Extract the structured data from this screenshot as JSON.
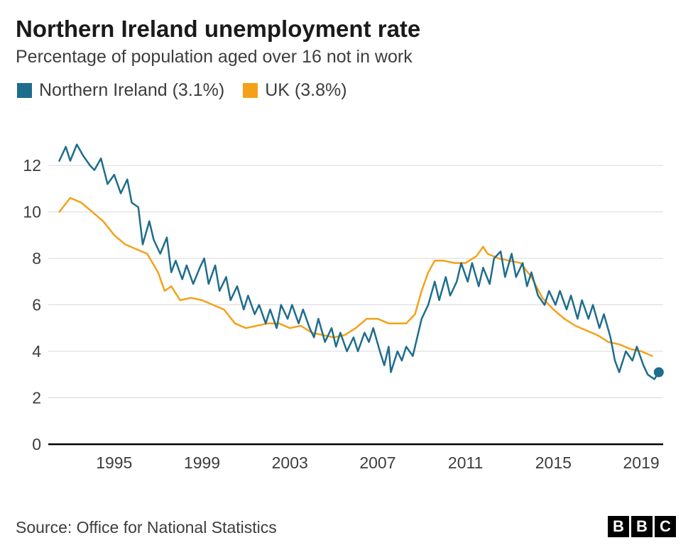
{
  "chart": {
    "type": "line",
    "title": "Northern Ireland unemployment rate",
    "subtitle": "Percentage of population aged over 16 not in work",
    "source": "Source: Office for National Statistics",
    "legend": [
      {
        "label": "Northern Ireland (3.1%)",
        "color": "#1e6d8c"
      },
      {
        "label": "UK (3.8%)",
        "color": "#f4a119"
      }
    ],
    "yaxis": {
      "min": 0,
      "max": 13.5,
      "ticks": [
        0,
        2,
        4,
        6,
        8,
        10,
        12
      ],
      "grid_color": "#d9d9d9",
      "label_fontsize": 23
    },
    "xaxis": {
      "min": 1992,
      "max": 2020,
      "ticks": [
        1995,
        1999,
        2003,
        2007,
        2011,
        2015,
        2019
      ],
      "label_fontsize": 23
    },
    "background_color": "#ffffff",
    "line_width": 2.5,
    "end_marker": {
      "series": "ni",
      "radius": 7,
      "color": "#1e6d8c"
    },
    "baseline_color": "#000000",
    "series": {
      "ni": {
        "color": "#1e6d8c",
        "points": [
          [
            1992.5,
            12.2
          ],
          [
            1992.8,
            12.8
          ],
          [
            1993.0,
            12.2
          ],
          [
            1993.3,
            12.9
          ],
          [
            1993.6,
            12.4
          ],
          [
            1993.9,
            12.0
          ],
          [
            1994.1,
            11.8
          ],
          [
            1994.4,
            12.3
          ],
          [
            1994.7,
            11.2
          ],
          [
            1995.0,
            11.6
          ],
          [
            1995.3,
            10.8
          ],
          [
            1995.6,
            11.4
          ],
          [
            1995.8,
            10.4
          ],
          [
            1996.1,
            10.2
          ],
          [
            1996.3,
            8.6
          ],
          [
            1996.6,
            9.6
          ],
          [
            1996.8,
            8.8
          ],
          [
            1997.1,
            8.2
          ],
          [
            1997.4,
            8.9
          ],
          [
            1997.6,
            7.4
          ],
          [
            1997.8,
            7.9
          ],
          [
            1998.1,
            7.1
          ],
          [
            1998.3,
            7.7
          ],
          [
            1998.6,
            6.9
          ],
          [
            1998.9,
            7.6
          ],
          [
            1999.1,
            8.0
          ],
          [
            1999.3,
            6.9
          ],
          [
            1999.6,
            7.7
          ],
          [
            1999.8,
            6.6
          ],
          [
            2000.1,
            7.2
          ],
          [
            2000.3,
            6.2
          ],
          [
            2000.6,
            6.8
          ],
          [
            2000.9,
            5.8
          ],
          [
            2001.1,
            6.4
          ],
          [
            2001.4,
            5.6
          ],
          [
            2001.6,
            6.0
          ],
          [
            2001.9,
            5.2
          ],
          [
            2002.1,
            5.8
          ],
          [
            2002.4,
            5.0
          ],
          [
            2002.6,
            6.0
          ],
          [
            2002.9,
            5.4
          ],
          [
            2003.1,
            6.0
          ],
          [
            2003.4,
            5.2
          ],
          [
            2003.6,
            5.8
          ],
          [
            2003.9,
            5.0
          ],
          [
            2004.1,
            4.6
          ],
          [
            2004.3,
            5.4
          ],
          [
            2004.6,
            4.4
          ],
          [
            2004.9,
            5.0
          ],
          [
            2005.1,
            4.2
          ],
          [
            2005.3,
            4.8
          ],
          [
            2005.6,
            4.0
          ],
          [
            2005.9,
            4.6
          ],
          [
            2006.1,
            4.0
          ],
          [
            2006.4,
            4.8
          ],
          [
            2006.6,
            4.4
          ],
          [
            2006.8,
            5.0
          ],
          [
            2007.1,
            4.0
          ],
          [
            2007.3,
            3.4
          ],
          [
            2007.5,
            4.2
          ],
          [
            2007.6,
            3.1
          ],
          [
            2007.9,
            4.0
          ],
          [
            2008.1,
            3.6
          ],
          [
            2008.3,
            4.2
          ],
          [
            2008.6,
            3.8
          ],
          [
            2008.8,
            4.6
          ],
          [
            2009.0,
            5.4
          ],
          [
            2009.3,
            6.0
          ],
          [
            2009.6,
            7.0
          ],
          [
            2009.8,
            6.2
          ],
          [
            2010.1,
            7.2
          ],
          [
            2010.3,
            6.4
          ],
          [
            2010.6,
            7.0
          ],
          [
            2010.8,
            7.8
          ],
          [
            2011.1,
            7.0
          ],
          [
            2011.3,
            7.8
          ],
          [
            2011.6,
            6.8
          ],
          [
            2011.8,
            7.6
          ],
          [
            2012.1,
            6.9
          ],
          [
            2012.3,
            8.0
          ],
          [
            2012.6,
            8.3
          ],
          [
            2012.8,
            7.2
          ],
          [
            2013.1,
            8.2
          ],
          [
            2013.3,
            7.2
          ],
          [
            2013.6,
            7.8
          ],
          [
            2013.8,
            6.8
          ],
          [
            2014.0,
            7.4
          ],
          [
            2014.3,
            6.4
          ],
          [
            2014.6,
            6.0
          ],
          [
            2014.8,
            6.6
          ],
          [
            2015.1,
            6.0
          ],
          [
            2015.3,
            6.6
          ],
          [
            2015.6,
            5.8
          ],
          [
            2015.8,
            6.4
          ],
          [
            2016.1,
            5.4
          ],
          [
            2016.3,
            6.2
          ],
          [
            2016.6,
            5.4
          ],
          [
            2016.8,
            6.0
          ],
          [
            2017.1,
            5.0
          ],
          [
            2017.3,
            5.6
          ],
          [
            2017.6,
            4.6
          ],
          [
            2017.8,
            3.6
          ],
          [
            2018.0,
            3.1
          ],
          [
            2018.3,
            4.0
          ],
          [
            2018.6,
            3.6
          ],
          [
            2018.8,
            4.2
          ],
          [
            2019.1,
            3.4
          ],
          [
            2019.3,
            3.0
          ],
          [
            2019.6,
            2.8
          ],
          [
            2019.8,
            3.1
          ]
        ]
      },
      "uk": {
        "color": "#f4a119",
        "points": [
          [
            1992.5,
            10.0
          ],
          [
            1993.0,
            10.6
          ],
          [
            1993.5,
            10.4
          ],
          [
            1994.0,
            10.0
          ],
          [
            1994.5,
            9.6
          ],
          [
            1995.0,
            9.0
          ],
          [
            1995.5,
            8.6
          ],
          [
            1996.0,
            8.4
          ],
          [
            1996.5,
            8.2
          ],
          [
            1997.0,
            7.4
          ],
          [
            1997.3,
            6.6
          ],
          [
            1997.6,
            6.8
          ],
          [
            1998.0,
            6.2
          ],
          [
            1998.5,
            6.3
          ],
          [
            1999.0,
            6.2
          ],
          [
            1999.5,
            6.0
          ],
          [
            2000.0,
            5.8
          ],
          [
            2000.5,
            5.2
          ],
          [
            2001.0,
            5.0
          ],
          [
            2001.5,
            5.1
          ],
          [
            2002.0,
            5.2
          ],
          [
            2002.5,
            5.2
          ],
          [
            2003.0,
            5.0
          ],
          [
            2003.5,
            5.1
          ],
          [
            2004.0,
            4.8
          ],
          [
            2004.5,
            4.7
          ],
          [
            2005.0,
            4.6
          ],
          [
            2005.5,
            4.7
          ],
          [
            2006.0,
            5.0
          ],
          [
            2006.5,
            5.4
          ],
          [
            2007.0,
            5.4
          ],
          [
            2007.5,
            5.2
          ],
          [
            2008.0,
            5.2
          ],
          [
            2008.3,
            5.2
          ],
          [
            2008.7,
            5.6
          ],
          [
            2009.0,
            6.6
          ],
          [
            2009.3,
            7.4
          ],
          [
            2009.6,
            7.9
          ],
          [
            2010.0,
            7.9
          ],
          [
            2010.5,
            7.8
          ],
          [
            2011.0,
            7.8
          ],
          [
            2011.5,
            8.1
          ],
          [
            2011.8,
            8.5
          ],
          [
            2012.0,
            8.2
          ],
          [
            2012.5,
            8.0
          ],
          [
            2013.0,
            7.9
          ],
          [
            2013.5,
            7.8
          ],
          [
            2014.0,
            7.2
          ],
          [
            2014.5,
            6.3
          ],
          [
            2015.0,
            5.8
          ],
          [
            2015.5,
            5.4
          ],
          [
            2016.0,
            5.1
          ],
          [
            2016.5,
            4.9
          ],
          [
            2017.0,
            4.7
          ],
          [
            2017.5,
            4.4
          ],
          [
            2018.0,
            4.3
          ],
          [
            2018.5,
            4.1
          ],
          [
            2019.0,
            4.0
          ],
          [
            2019.5,
            3.8
          ]
        ]
      }
    }
  },
  "branding": {
    "b1": "B",
    "b2": "B",
    "b3": "C"
  }
}
